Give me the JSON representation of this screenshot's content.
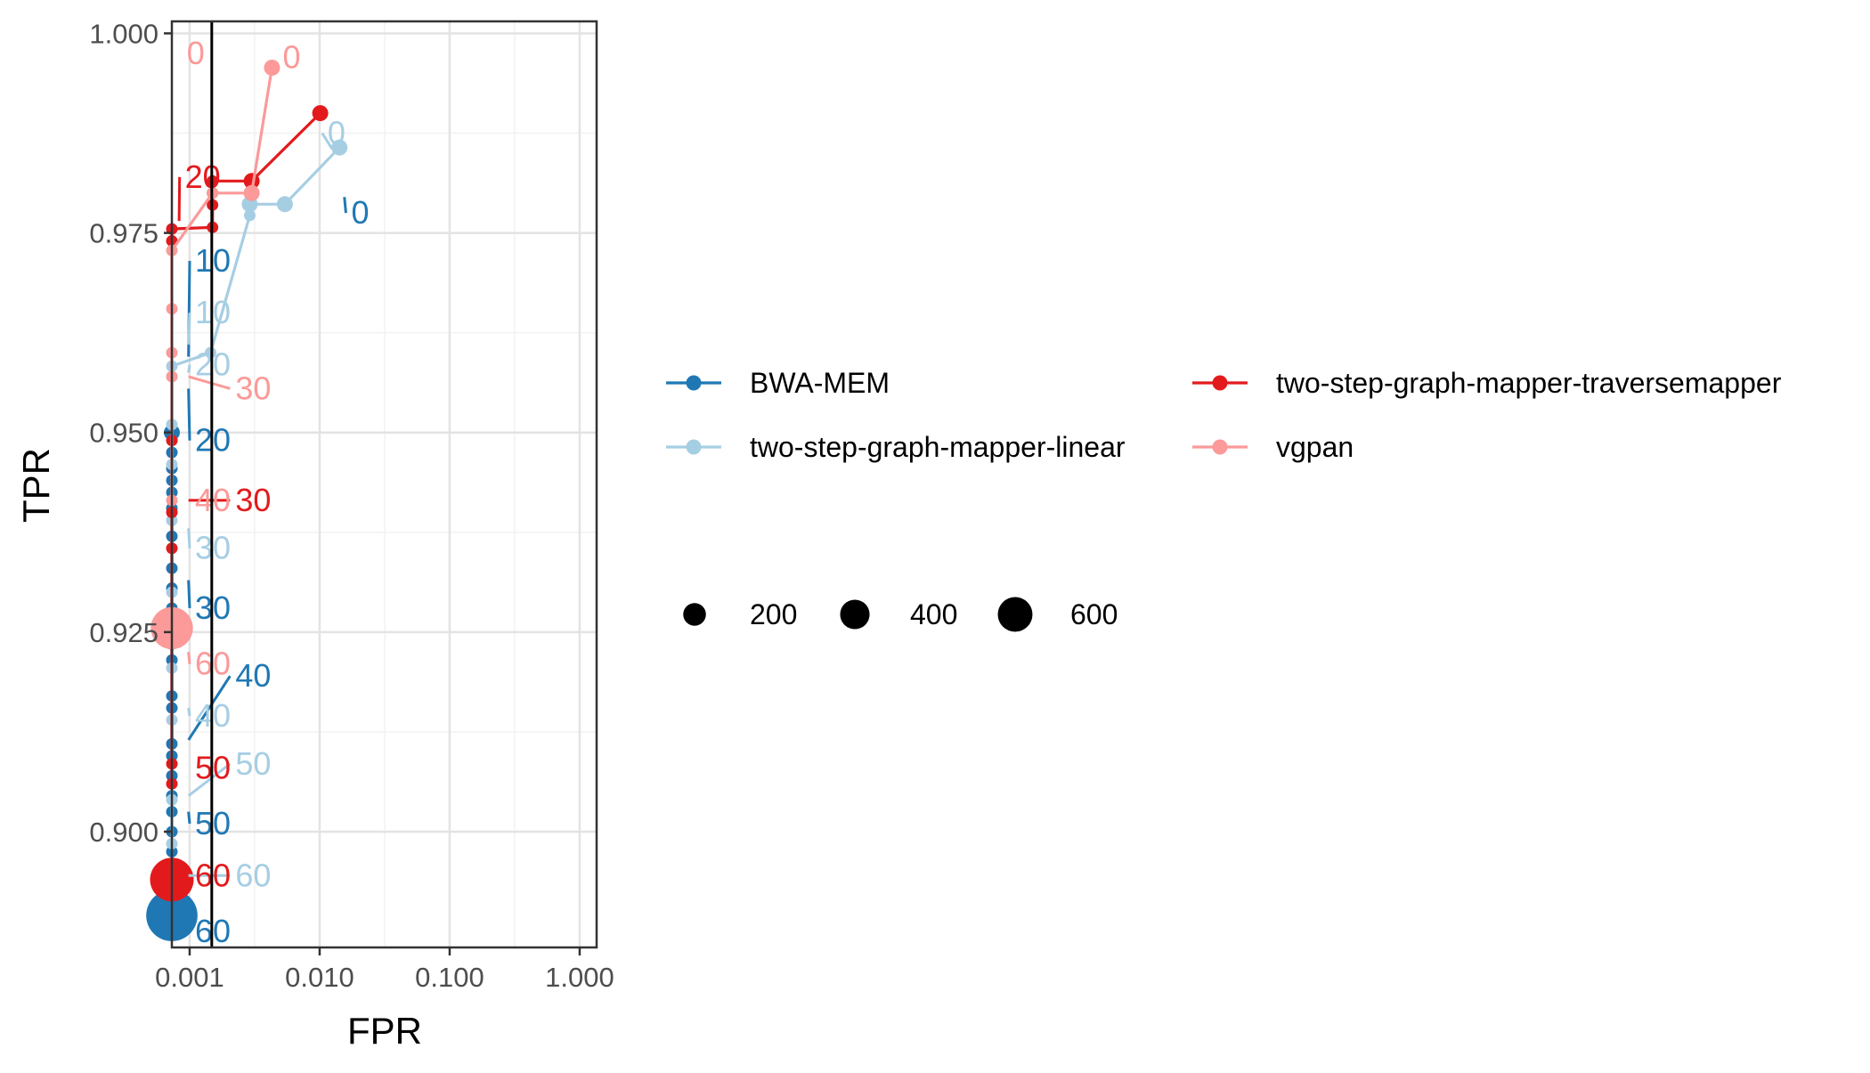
{
  "chart_data": {
    "type": "line",
    "title": "",
    "xlabel": "FPR",
    "ylabel": "TPR",
    "x_scale": "log",
    "xlim": [
      0.00073,
      1.35
    ],
    "ylim": [
      0.8855,
      1.0015
    ],
    "x_ticks": [
      0.001,
      0.01,
      0.1,
      1.0
    ],
    "x_tick_labels": [
      "0.001",
      "0.010",
      "0.100",
      "1.000"
    ],
    "y_ticks": [
      0.9,
      0.925,
      0.95,
      0.975,
      1.0
    ],
    "y_tick_labels": [
      "0.900",
      "0.925",
      "0.950",
      "0.975",
      "1.000"
    ],
    "grid": true,
    "vline_x": 0.00148,
    "legend_position": "right",
    "size_legend": {
      "values": [
        200,
        400,
        600
      ],
      "labels": [
        "200",
        "400",
        "600"
      ]
    },
    "series": [
      {
        "name": "BWA-MEM",
        "color": "#1f78b4",
        "points": [
          {
            "x": 0.00073,
            "y": 0.95
          },
          {
            "x": 0.00073,
            "y": 0.9475
          },
          {
            "x": 0.00073,
            "y": 0.9455
          },
          {
            "x": 0.00073,
            "y": 0.944
          },
          {
            "x": 0.00073,
            "y": 0.9425
          },
          {
            "x": 0.00073,
            "y": 0.9405
          },
          {
            "x": 0.00073,
            "y": 0.937
          },
          {
            "x": 0.00073,
            "y": 0.933
          },
          {
            "x": 0.00073,
            "y": 0.9305
          },
          {
            "x": 0.00073,
            "y": 0.928
          },
          {
            "x": 0.00073,
            "y": 0.9255
          },
          {
            "x": 0.00073,
            "y": 0.9235
          },
          {
            "x": 0.00073,
            "y": 0.9215
          },
          {
            "x": 0.00073,
            "y": 0.917
          },
          {
            "x": 0.00073,
            "y": 0.9155
          },
          {
            "x": 0.00073,
            "y": 0.911
          },
          {
            "x": 0.00073,
            "y": 0.9095
          },
          {
            "x": 0.00073,
            "y": 0.907
          },
          {
            "x": 0.00073,
            "y": 0.9045
          },
          {
            "x": 0.00073,
            "y": 0.9025
          },
          {
            "x": 0.00073,
            "y": 0.9
          },
          {
            "x": 0.00073,
            "y": 0.8975
          },
          {
            "x": 0.00073,
            "y": 0.8955
          }
        ],
        "big_points": [
          {
            "x": 0.00073,
            "y": 0.8895,
            "size": 700
          }
        ],
        "labels": [
          {
            "text": "0",
            "x": 0.0175,
            "y": 0.9775,
            "ax": 0.0155,
            "ay": 0.9795
          },
          {
            "text": "10",
            "x": 0.0011,
            "y": 0.9715,
            "ax": 0.00098,
            "ay": 0.9595
          },
          {
            "text": "20",
            "x": 0.0011,
            "y": 0.949,
            "ax": 0.00098,
            "ay": 0.9555
          },
          {
            "text": "30",
            "x": 0.0011,
            "y": 0.928,
            "ax": 0.00098,
            "ay": 0.9315
          },
          {
            "text": "40",
            "x": 0.00225,
            "y": 0.9195,
            "ax": 0.00098,
            "ay": 0.9115
          },
          {
            "text": "50",
            "x": 0.0011,
            "y": 0.901,
            "ax": 0.00098,
            "ay": 0.9025
          },
          {
            "text": "60",
            "x": 0.0011,
            "y": 0.8875,
            "ax": 0.00098,
            "ay": 0.8895
          }
        ]
      },
      {
        "name": "two-step-graph-mapper-linear",
        "color": "#a6cee3",
        "points": [
          {
            "x": 0.0142,
            "y": 0.9857
          },
          {
            "x": 0.0054,
            "y": 0.9786
          },
          {
            "x": 0.0029,
            "y": 0.9786
          },
          {
            "x": 0.0029,
            "y": 0.9772
          },
          {
            "x": 0.00145,
            "y": 0.96
          },
          {
            "x": 0.00073,
            "y": 0.9583
          },
          {
            "x": 0.00073,
            "y": 0.957
          },
          {
            "x": 0.00073,
            "y": 0.951
          },
          {
            "x": 0.00073,
            "y": 0.946
          },
          {
            "x": 0.00073,
            "y": 0.939
          },
          {
            "x": 0.00073,
            "y": 0.93
          },
          {
            "x": 0.00073,
            "y": 0.9205
          },
          {
            "x": 0.00073,
            "y": 0.914
          },
          {
            "x": 0.00073,
            "y": 0.904
          },
          {
            "x": 0.00073,
            "y": 0.8985
          }
        ],
        "big_points": [
          {
            "x": 0.00073,
            "y": 0.8945,
            "size": 250
          }
        ],
        "labels": [
          {
            "text": "0",
            "x": 0.0115,
            "y": 0.9875,
            "ax": 0.0125,
            "ay": 0.9855
          },
          {
            "text": "10",
            "x": 0.0011,
            "y": 0.965,
            "ax": 0.00098,
            "ay": 0.961
          },
          {
            "text": "20",
            "x": 0.0011,
            "y": 0.9585,
            "ax": 0.00098,
            "ay": 0.9575
          },
          {
            "text": "30",
            "x": 0.0011,
            "y": 0.9355,
            "ax": 0.00098,
            "ay": 0.938
          },
          {
            "text": "40",
            "x": 0.0011,
            "y": 0.9145,
            "ax": 0.00098,
            "ay": 0.9155
          },
          {
            "text": "50",
            "x": 0.00225,
            "y": 0.9085,
            "ax": 0.00098,
            "ay": 0.9045
          },
          {
            "text": "60",
            "x": 0.00225,
            "y": 0.8945,
            "ax": 0.00098,
            "ay": 0.8945
          }
        ]
      },
      {
        "name": "two-step-graph-mapper-traversemapper",
        "color": "#e31a1c",
        "points": [
          {
            "x": 0.0101,
            "y": 0.99
          },
          {
            "x": 0.003,
            "y": 0.9815
          },
          {
            "x": 0.0015,
            "y": 0.9815
          },
          {
            "x": 0.0015,
            "y": 0.98
          },
          {
            "x": 0.0015,
            "y": 0.9785
          },
          {
            "x": 0.0015,
            "y": 0.9757
          },
          {
            "x": 0.00073,
            "y": 0.9755
          },
          {
            "x": 0.00073,
            "y": 0.974
          },
          {
            "x": 0.00073,
            "y": 0.949
          },
          {
            "x": 0.00073,
            "y": 0.94
          },
          {
            "x": 0.00073,
            "y": 0.9355
          },
          {
            "x": 0.00073,
            "y": 0.9085
          },
          {
            "x": 0.00073,
            "y": 0.906
          }
        ],
        "big_points": [
          {
            "x": 0.00073,
            "y": 0.894,
            "size": 470
          }
        ],
        "labels": [
          {
            "text": "20",
            "x": 0.00092,
            "y": 0.982,
            "ax": 0.00083,
            "ay": 0.9765
          },
          {
            "text": "30",
            "x": 0.00225,
            "y": 0.9415,
            "ax": 0.00098,
            "ay": 0.9415
          },
          {
            "text": "50",
            "x": 0.0011,
            "y": 0.908,
            "ax": 0.00098,
            "ay": 0.908
          },
          {
            "text": "60",
            "x": 0.0011,
            "y": 0.8945,
            "ax": 0.00098,
            "ay": 0.8945
          }
        ]
      },
      {
        "name": "vgpan",
        "color": "#fb9a99",
        "points": [
          {
            "x": 0.0043,
            "y": 0.9957
          },
          {
            "x": 0.003,
            "y": 0.98
          },
          {
            "x": 0.0015,
            "y": 0.98
          },
          {
            "x": 0.00073,
            "y": 0.9728
          },
          {
            "x": 0.00073,
            "y": 0.9655
          },
          {
            "x": 0.00073,
            "y": 0.96
          },
          {
            "x": 0.00073,
            "y": 0.957
          },
          {
            "x": 0.00073,
            "y": 0.9415
          }
        ],
        "big_points": [
          {
            "x": 0.00073,
            "y": 0.9255,
            "size": 430
          }
        ],
        "labels": [
          {
            "text": "0",
            "x": 0.00095,
            "y": 0.9975,
            "ax": 0.00095,
            "ay": 0.9975
          },
          {
            "text": "0",
            "x": 0.0052,
            "y": 0.997,
            "ax": 0.0052,
            "ay": 0.997
          },
          {
            "text": "30",
            "x": 0.00225,
            "y": 0.9555,
            "ax": 0.00098,
            "ay": 0.957
          },
          {
            "text": "40",
            "x": 0.0011,
            "y": 0.9415,
            "ax": 0.00098,
            "ay": 0.9415
          },
          {
            "text": "60",
            "x": 0.0011,
            "y": 0.921,
            "ax": 0.00098,
            "ay": 0.9225
          }
        ]
      }
    ]
  }
}
